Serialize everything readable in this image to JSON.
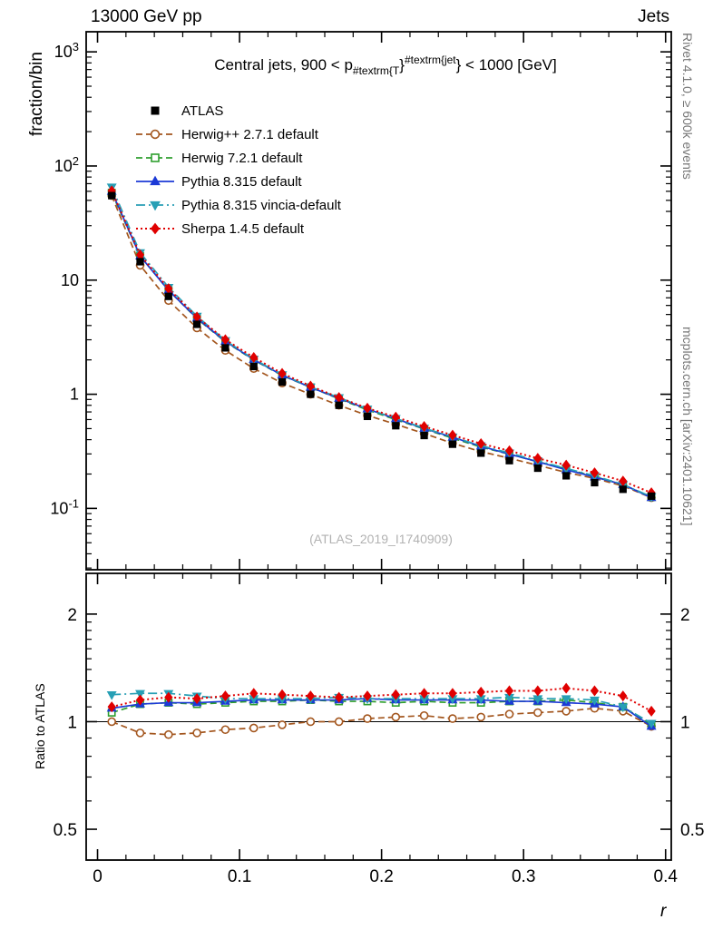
{
  "header": {
    "left": "13000 GeV pp",
    "right": "Jets"
  },
  "side_notes": {
    "top": "Rivet 4.1.0, ≥ 600k events",
    "bottom": "mcplots.cern.ch [arXiv:2401.10621]"
  },
  "watermark": "(ATLAS_2019_I1740909)",
  "chart_data": {
    "type": "line",
    "title_segments": [
      {
        "t": "Central jets, 900 < p",
        "style": "base"
      },
      {
        "t": "#textrm{T",
        "style": "sub"
      },
      {
        "t": "}",
        "style": "base"
      },
      {
        "t": "#textrm{jet",
        "style": "sup"
      },
      {
        "t": "} < 1000 [GeV]",
        "style": "base"
      }
    ],
    "xlabel": "r",
    "xlim": [
      -0.008,
      0.404
    ],
    "xticks": [
      0,
      0.1,
      0.2,
      0.3,
      0.4
    ],
    "x_minor_step": 0.02,
    "main_panel": {
      "ylabel": "fraction/bin",
      "yscale": "log",
      "ylim": [
        0.029,
        1500
      ],
      "ytick_exponents": [
        -1,
        0,
        1,
        2,
        3
      ]
    },
    "ratio_panel": {
      "ylabel": "Ratio to ATLAS",
      "yscale": "log",
      "ylim": [
        0.41,
        2.6
      ],
      "yticks": [
        0.5,
        1,
        2
      ],
      "yminors": [
        0.6,
        0.7,
        0.8,
        0.9,
        1.1,
        1.2,
        1.3,
        1.4,
        1.5,
        1.6,
        1.7,
        1.8,
        1.9
      ]
    },
    "x": [
      0.01,
      0.03,
      0.05,
      0.07,
      0.09,
      0.11,
      0.13,
      0.15,
      0.17,
      0.19,
      0.21,
      0.23,
      0.25,
      0.27,
      0.29,
      0.31,
      0.33,
      0.35,
      0.37,
      0.39
    ],
    "reference": {
      "name": "ATLAS",
      "color": "#000000",
      "marker": "square",
      "fill": "solid",
      "values": [
        55,
        14.5,
        7.2,
        4.1,
        2.55,
        1.75,
        1.28,
        1.0,
        0.8,
        0.64,
        0.53,
        0.435,
        0.365,
        0.305,
        0.262,
        0.225,
        0.193,
        0.168,
        0.147,
        0.128
      ]
    },
    "series": [
      {
        "name": "Herwig++ 2.7.1 default",
        "color": "#a3561e",
        "marker": "circle",
        "fill": "open",
        "linestyle": "dashed",
        "ratio": [
          1.0,
          0.93,
          0.92,
          0.93,
          0.95,
          0.96,
          0.98,
          1.0,
          1.0,
          1.02,
          1.03,
          1.04,
          1.02,
          1.03,
          1.05,
          1.06,
          1.07,
          1.09,
          1.07,
          0.97
        ]
      },
      {
        "name": "Herwig 7.2.1 default",
        "color": "#2e9e2e",
        "marker": "square",
        "fill": "open",
        "linestyle": "dashed",
        "ratio": [
          1.06,
          1.12,
          1.13,
          1.12,
          1.13,
          1.14,
          1.14,
          1.15,
          1.14,
          1.14,
          1.13,
          1.14,
          1.13,
          1.13,
          1.14,
          1.14,
          1.15,
          1.13,
          1.1,
          0.98
        ]
      },
      {
        "name": "Pythia 8.315 default",
        "color": "#1c3ad6",
        "marker": "triangle-up",
        "fill": "solid",
        "linestyle": "solid",
        "ratio": [
          1.09,
          1.12,
          1.13,
          1.13,
          1.14,
          1.15,
          1.15,
          1.15,
          1.15,
          1.16,
          1.15,
          1.15,
          1.15,
          1.15,
          1.14,
          1.14,
          1.13,
          1.12,
          1.1,
          0.97
        ]
      },
      {
        "name": "Pythia 8.315 vincia-default",
        "color": "#279fb5",
        "marker": "triangle-down",
        "fill": "solid",
        "linestyle": "dashdot",
        "ratio": [
          1.19,
          1.2,
          1.2,
          1.18,
          1.16,
          1.16,
          1.16,
          1.16,
          1.17,
          1.16,
          1.16,
          1.16,
          1.16,
          1.16,
          1.17,
          1.16,
          1.16,
          1.15,
          1.1,
          0.99
        ]
      },
      {
        "name": "Sherpa 1.4.5 default",
        "color": "#e00000",
        "marker": "diamond",
        "fill": "solid",
        "linestyle": "dotted",
        "ratio": [
          1.1,
          1.15,
          1.17,
          1.16,
          1.18,
          1.2,
          1.19,
          1.18,
          1.17,
          1.18,
          1.19,
          1.2,
          1.2,
          1.21,
          1.22,
          1.22,
          1.24,
          1.22,
          1.18,
          1.07
        ]
      }
    ]
  }
}
